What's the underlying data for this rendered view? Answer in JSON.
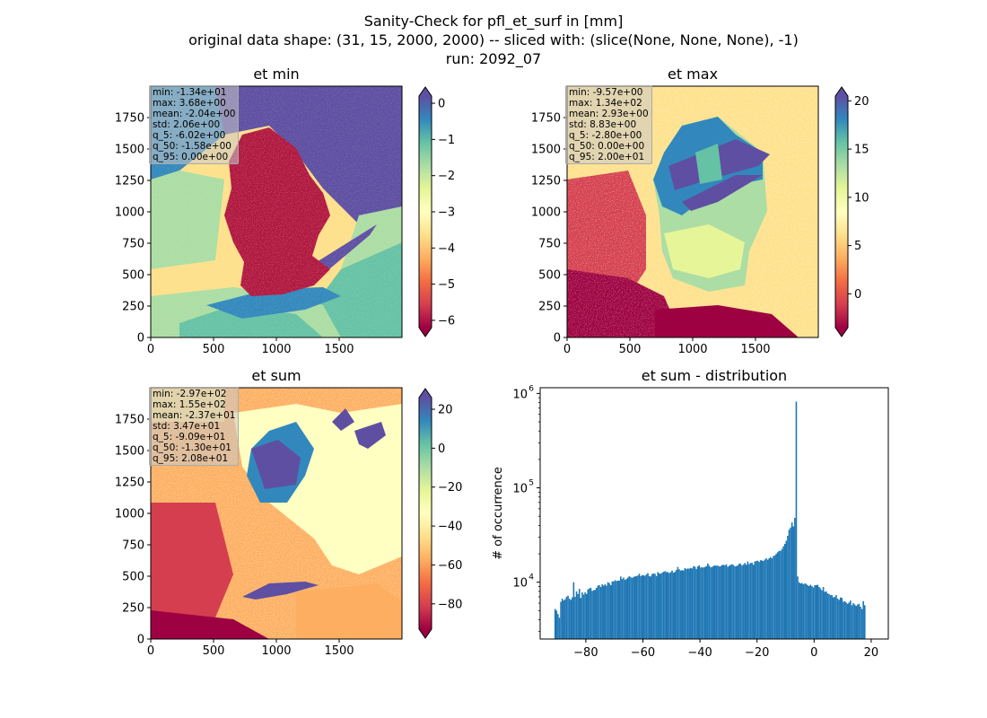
{
  "figure": {
    "title_lines": [
      "Sanity-Check for pfl_et_surf in [mm]",
      "original data shape: (31, 15, 2000, 2000) -- sliced with: (slice(None, None, None), -1)",
      "run: 2092_07"
    ]
  },
  "chart_data": [
    {
      "type": "heatmap",
      "title": "et min",
      "xlim": [
        0,
        2000
      ],
      "ylim": [
        0,
        2000
      ],
      "xticks": [
        0,
        500,
        1000,
        1500
      ],
      "yticks": [
        0,
        250,
        500,
        750,
        1000,
        1250,
        1500,
        1750
      ],
      "colormap": "Spectral",
      "colorbar": {
        "range": [
          -6.2,
          0.2
        ],
        "ticks": [
          0,
          -1,
          -2,
          -3,
          -4,
          -5,
          -6
        ],
        "extend": "both"
      },
      "stats": [
        "min: -1.34e+01",
        "max: 3.68e+00",
        "mean: -2.04e+00",
        "std: 2.06e+00",
        "q_5: -6.02e+00",
        "q_50: -1.58e+00",
        "q_95: 0.00e+00"
      ]
    },
    {
      "type": "heatmap",
      "title": "et max",
      "xlim": [
        0,
        2000
      ],
      "ylim": [
        0,
        2000
      ],
      "xticks": [
        0,
        500,
        1000,
        1500
      ],
      "yticks": [
        0,
        250,
        500,
        750,
        1000,
        1250,
        1500,
        1750
      ],
      "colormap": "Spectral",
      "colorbar": {
        "range": [
          -3.5,
          20.5
        ],
        "ticks": [
          20,
          15,
          10,
          5,
          0
        ],
        "extend": "both"
      },
      "stats": [
        "min: -9.57e+00",
        "max: 1.34e+02",
        "mean: 2.93e+00",
        "std: 8.83e+00",
        "q_5: -2.80e+00",
        "q_50: 0.00e+00",
        "q_95: 2.00e+01"
      ]
    },
    {
      "type": "heatmap",
      "title": "et sum",
      "xlim": [
        0,
        2000
      ],
      "ylim": [
        0,
        2000
      ],
      "xticks": [
        0,
        500,
        1000,
        1500
      ],
      "yticks": [
        0,
        250,
        500,
        750,
        1000,
        1250,
        1500,
        1750
      ],
      "colormap": "Spectral",
      "colorbar": {
        "range": [
          -93,
          26
        ],
        "ticks": [
          20,
          0,
          -20,
          -40,
          -60,
          -80
        ],
        "extend": "both"
      },
      "stats": [
        "min: -2.97e+02",
        "max: 1.55e+02",
        "mean: -2.37e+01",
        "std: 3.47e+01",
        "q_5: -9.09e+01",
        "q_50: -1.30e+01",
        "q_95: 2.08e+01"
      ]
    },
    {
      "type": "bar",
      "title": "et sum - distribution",
      "ylabel": "# of occurrence",
      "yscale": "log",
      "color": "#1f77b4",
      "xlim": [
        -96,
        26
      ],
      "ylim": [
        2500,
        1150000
      ],
      "xticks": [
        -80,
        -60,
        -40,
        -20,
        0,
        20
      ],
      "yticks": [
        10000,
        100000,
        1000000
      ],
      "yticklabels": [
        [
          "10",
          "4"
        ],
        [
          "10",
          "5"
        ],
        [
          "10",
          "6"
        ]
      ],
      "bin_start": -91,
      "bin_width": 0.5,
      "counts": [
        5200,
        5000,
        4600,
        4200,
        6200,
        6700,
        6400,
        6600,
        7000,
        7200,
        6700,
        6500,
        6900,
        10000,
        7000,
        8000,
        7500,
        8500,
        6800,
        7800,
        7400,
        7800,
        7500,
        8400,
        8600,
        8700,
        8100,
        8200,
        8300,
        8700,
        9200,
        9300,
        8900,
        9500,
        9200,
        9500,
        9200,
        10000,
        9800,
        9300,
        10200,
        10200,
        10500,
        10300,
        10400,
        10400,
        11500,
        10800,
        11200,
        10600,
        10800,
        11200,
        11600,
        11300,
        11100,
        11400,
        11500,
        11600,
        11800,
        12300,
        11600,
        11900,
        11800,
        11700,
        12100,
        12500,
        11600,
        11500,
        12200,
        12400,
        12300,
        11600,
        12800,
        12400,
        12300,
        12600,
        12900,
        13100,
        12800,
        12800,
        12500,
        12800,
        13300,
        12600,
        12900,
        13500,
        14500,
        13700,
        13300,
        13400,
        13300,
        14100,
        13800,
        14000,
        13900,
        14200,
        14000,
        14800,
        14600,
        13800,
        14700,
        15100,
        14300,
        14400,
        14300,
        14500,
        14800,
        15800,
        15000,
        14400,
        14500,
        14900,
        15000,
        15000,
        15000,
        14700,
        14800,
        15200,
        15300,
        15100,
        15500,
        14600,
        14900,
        15300,
        15500,
        15200,
        14700,
        14800,
        15100,
        15700,
        15700,
        15000,
        15400,
        16000,
        15300,
        16600,
        15600,
        16000,
        16100,
        15300,
        16600,
        16800,
        16900,
        16400,
        17100,
        17000,
        16800,
        17400,
        17900,
        17300,
        17900,
        18500,
        17900,
        19000,
        19200,
        20000,
        20800,
        21500,
        21500,
        22500,
        24000,
        25500,
        27500,
        31000,
        36000,
        38000,
        43000,
        39000,
        48000,
        820000,
        11500,
        10000,
        9700,
        9800,
        9500,
        9700,
        9600,
        9300,
        9100,
        9400,
        9100,
        8800,
        9300,
        9300,
        9400,
        8900,
        8600,
        8200,
        8900,
        7900,
        8000,
        7600,
        7500,
        7300,
        7300,
        6900,
        7000,
        7300,
        6700,
        6500,
        6900,
        6800,
        6200,
        6300,
        6100,
        5900,
        6100,
        6400,
        5700,
        6000,
        5800,
        5600,
        5800,
        5900,
        5500,
        5200,
        6300,
        5700
      ]
    }
  ]
}
